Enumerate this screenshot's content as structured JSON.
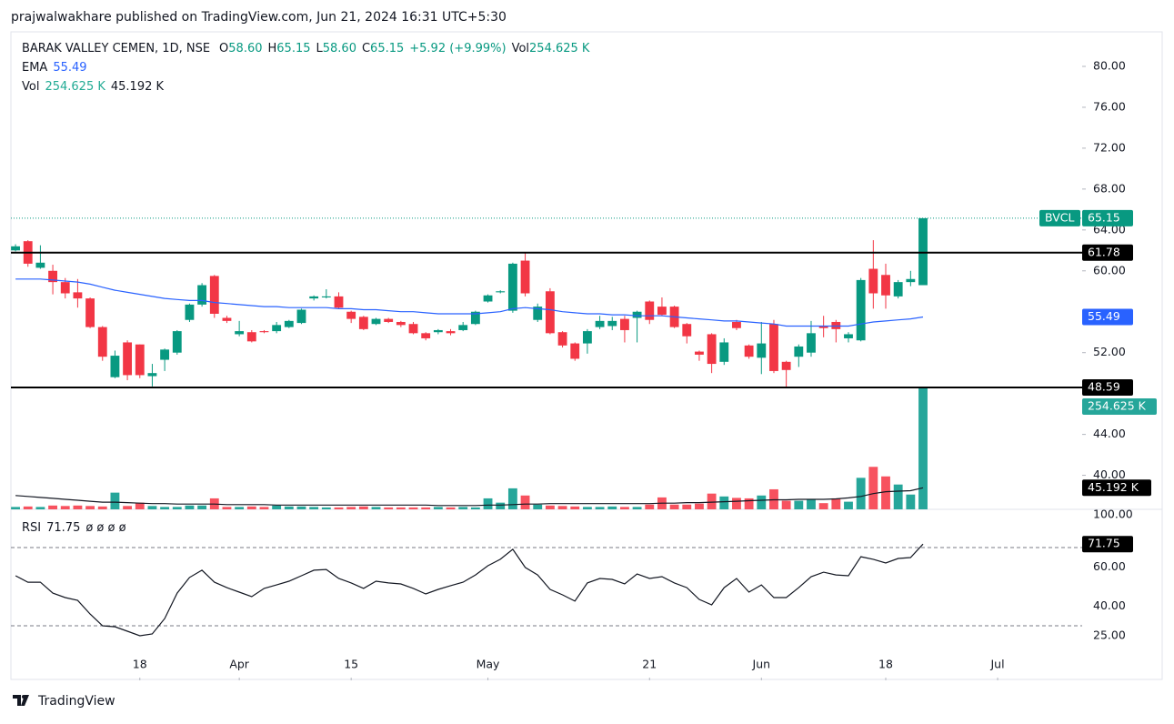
{
  "header": {
    "text": "prajwalwakhare published on TradingView.com, Jun 21, 2024 16:31 UTC+5:30"
  },
  "footer": {
    "logo_text": "TradingView"
  },
  "chart_data": {
    "type": "candlestick",
    "title": "BARAK VALLEY CEMEN, 1D, NSE",
    "ohlc_legend": [
      {
        "label": "O",
        "value": "58.60"
      },
      {
        "label": "H",
        "value": "65.15"
      },
      {
        "label": "L",
        "value": "58.60"
      },
      {
        "label": "C",
        "value": "65.15"
      }
    ],
    "change": "+5.92 (+9.99%)",
    "volume_legend": {
      "label": "Vol",
      "value": "254.625 K"
    },
    "ema_legend": {
      "name": "EMA",
      "value": "55.49"
    },
    "vol_legend": {
      "name": "Vol",
      "values": [
        "254.625 K",
        "45.192 K"
      ]
    },
    "rsi_legend": {
      "name": "RSI",
      "value": "71.75",
      "extra": "ø ø ø ø"
    },
    "up_color": "#089981",
    "down_color": "#f23645",
    "vol_up_color": "#26a69a",
    "vol_down_color": "#f7525f",
    "ema_color": "#2962ff",
    "vol_ma_color": "#131722",
    "rsi_color": "#131722",
    "open": [
      62.0,
      62.9,
      60.3,
      60.0,
      58.9,
      57.9,
      57.3,
      54.5,
      49.6,
      53.0,
      52.8,
      49.7,
      51.3,
      52.0,
      55.2,
      56.7,
      59.5,
      55.4,
      53.8,
      54.0,
      54.1,
      54.1,
      54.5,
      54.9,
      57.3,
      57.4,
      57.5,
      56.0,
      55.5,
      54.8,
      55.3,
      55.0,
      54.8,
      53.9,
      54.0,
      54.1,
      54.2,
      54.8,
      57.0,
      57.9,
      56.1,
      61.0,
      55.2,
      58.0,
      54.0,
      52.9,
      52.9,
      54.5,
      54.6,
      55.3,
      55.4,
      57.0,
      56.5,
      56.5,
      54.8,
      52.1,
      53.8,
      51.1,
      55.0,
      52.7,
      51.5,
      54.8,
      51.1,
      51.6,
      52.0,
      54.6,
      55.0,
      53.4,
      53.2,
      60.2,
      59.6,
      57.5,
      58.9,
      58.6
    ],
    "high": [
      62.6,
      63.0,
      62.5,
      60.6,
      59.3,
      59.2,
      57.4,
      54.6,
      52.2,
      53.2,
      52.8,
      50.9,
      52.4,
      54.2,
      56.8,
      58.8,
      59.6,
      55.6,
      55.1,
      54.2,
      54.2,
      55.0,
      55.2,
      56.3,
      57.6,
      58.2,
      57.9,
      56.1,
      55.6,
      55.4,
      55.4,
      55.1,
      55.0,
      54.0,
      54.3,
      54.3,
      55.0,
      56.1,
      57.7,
      58.1,
      60.8,
      61.8,
      56.8,
      58.3,
      54.1,
      53.0,
      54.3,
      55.6,
      55.5,
      55.6,
      56.1,
      57.1,
      57.4,
      56.6,
      54.9,
      52.2,
      53.9,
      53.4,
      55.2,
      52.8,
      55.0,
      55.2,
      51.2,
      52.8,
      55.1,
      55.6,
      55.2,
      54.0,
      59.3,
      63.0,
      60.7,
      59.1,
      60.0,
      65.15
    ],
    "low": [
      61.9,
      60.4,
      60.2,
      57.7,
      57.3,
      56.4,
      54.4,
      51.2,
      49.5,
      49.3,
      49.5,
      48.7,
      50.2,
      51.8,
      55.0,
      56.5,
      55.4,
      54.9,
      53.6,
      53.0,
      53.9,
      53.9,
      54.4,
      54.8,
      57.1,
      57.3,
      56.3,
      54.9,
      54.2,
      54.7,
      54.9,
      54.5,
      53.8,
      53.2,
      53.8,
      53.7,
      54.1,
      54.7,
      56.9,
      57.8,
      55.9,
      57.5,
      55.0,
      53.8,
      52.5,
      51.2,
      51.9,
      54.3,
      54.2,
      53.0,
      53.0,
      54.8,
      55.6,
      54.4,
      52.9,
      51.2,
      50.0,
      50.8,
      54.2,
      51.4,
      49.9,
      50.0,
      48.6,
      50.6,
      51.6,
      53.5,
      53.0,
      53.0,
      53.1,
      56.3,
      56.3,
      57.3,
      58.5,
      58.6
    ],
    "close": [
      62.4,
      60.7,
      60.8,
      58.9,
      57.8,
      57.3,
      54.5,
      51.6,
      51.7,
      49.8,
      49.8,
      50.0,
      52.3,
      54.1,
      56.7,
      58.6,
      55.8,
      55.1,
      54.1,
      53.1,
      54.0,
      54.7,
      55.1,
      56.2,
      57.5,
      57.5,
      56.4,
      55.3,
      54.3,
      55.3,
      55.0,
      54.7,
      53.9,
      53.4,
      54.2,
      53.9,
      54.7,
      56.0,
      57.6,
      58.0,
      60.7,
      57.8,
      56.5,
      53.9,
      52.7,
      51.4,
      54.1,
      55.1,
      55.1,
      54.2,
      56.0,
      55.2,
      55.7,
      54.5,
      53.6,
      51.8,
      50.9,
      53.0,
      54.4,
      51.6,
      52.9,
      50.2,
      50.3,
      52.6,
      53.9,
      54.4,
      54.3,
      53.8,
      59.1,
      57.8,
      57.6,
      58.9,
      59.2,
      65.15
    ],
    "volume": [
      5,
      6,
      5,
      8,
      7,
      8,
      7,
      6,
      35,
      7,
      14,
      7,
      5,
      5,
      8,
      8,
      23,
      5,
      5,
      6,
      5,
      8,
      6,
      6,
      5,
      4,
      4,
      5,
      6,
      5,
      4,
      4,
      4,
      4,
      5,
      4,
      5,
      4,
      23,
      14,
      44,
      29,
      10,
      8,
      7,
      6,
      5,
      5,
      6,
      5,
      5,
      10,
      25,
      10,
      10,
      12,
      33,
      27,
      24,
      23,
      29,
      42,
      18,
      18,
      20,
      13,
      23,
      16,
      66,
      89,
      69,
      52,
      31,
      254.625
    ],
    "ema": [
      59.2,
      59.2,
      59.2,
      59.1,
      59.0,
      58.9,
      58.7,
      58.4,
      58.1,
      57.9,
      57.7,
      57.5,
      57.3,
      57.2,
      57.1,
      57.1,
      56.9,
      56.8,
      56.7,
      56.6,
      56.5,
      56.5,
      56.4,
      56.4,
      56.4,
      56.4,
      56.3,
      56.3,
      56.2,
      56.2,
      56.1,
      56.0,
      56.0,
      55.9,
      55.8,
      55.8,
      55.8,
      55.8,
      55.9,
      56.0,
      56.3,
      56.4,
      56.3,
      56.2,
      56.0,
      55.9,
      55.8,
      55.8,
      55.7,
      55.7,
      55.6,
      55.6,
      55.6,
      55.5,
      55.4,
      55.3,
      55.2,
      55.1,
      55.1,
      55.0,
      54.9,
      54.8,
      54.6,
      54.6,
      54.6,
      54.6,
      54.6,
      54.6,
      54.8,
      55.0,
      55.1,
      55.2,
      55.3,
      55.49
    ],
    "volume_ma": [
      29,
      27,
      25,
      23,
      21,
      19,
      17,
      15,
      15,
      14,
      13,
      12,
      12,
      11,
      11,
      11,
      11,
      10,
      10,
      10,
      10,
      9,
      9,
      9,
      9,
      9,
      9,
      9,
      9,
      9,
      9,
      9,
      9,
      9,
      8,
      8,
      8,
      8,
      9,
      9,
      10,
      11,
      11,
      12,
      12,
      12,
      12,
      12,
      12,
      12,
      12,
      12,
      13,
      13,
      14,
      14,
      15,
      16,
      17,
      18,
      19,
      20,
      20,
      21,
      21,
      21,
      22,
      24,
      27,
      33,
      37,
      38,
      39,
      45.192
    ],
    "rsi": [
      55.6,
      52.3,
      52.3,
      46.7,
      44.4,
      43,
      36,
      30,
      29.5,
      27.2,
      24.9,
      25.8,
      33.7,
      46.7,
      54.7,
      58.4,
      52.3,
      49.5,
      47.2,
      44.9,
      49.1,
      50.9,
      52.8,
      55.6,
      58.4,
      58.8,
      54.2,
      51.9,
      49.1,
      52.8,
      51.9,
      51.4,
      49.1,
      46.3,
      48.6,
      50.5,
      52.3,
      56,
      60.7,
      64,
      69.1,
      59.8,
      56,
      48.6,
      45.8,
      42.6,
      51.9,
      54.2,
      53.7,
      51.4,
      56.5,
      54.2,
      55.1,
      51.9,
      49.5,
      43.5,
      40.7,
      49.5,
      54.2,
      47.2,
      50.9,
      44.4,
      44.4,
      49.5,
      55.1,
      57.4,
      56,
      55.6,
      65.3,
      64,
      62.1,
      64.4,
      64.9,
      71.75
    ],
    "rsi_bands": [
      30,
      70
    ],
    "xlim": [
      -0.37,
      85.8
    ],
    "xticks": [
      {
        "value": 10,
        "label": "18"
      },
      {
        "value": 18,
        "label": "Apr"
      },
      {
        "value": 27,
        "label": "15"
      },
      {
        "value": 38,
        "label": "May"
      },
      {
        "value": 51,
        "label": "21"
      },
      {
        "value": 60,
        "label": "Jun"
      },
      {
        "value": 70,
        "label": "18"
      },
      {
        "value": 79,
        "label": "Jul"
      }
    ],
    "ylim": [
      36.67,
      83.38
    ],
    "yticks": [
      {
        "value": 40,
        "label": "40.00"
      },
      {
        "value": 44,
        "label": "44.00"
      },
      {
        "value": 52,
        "label": "52.00"
      },
      {
        "value": 60,
        "label": "60.00"
      },
      {
        "value": 64,
        "label": "64.00"
      },
      {
        "value": 68,
        "label": "68.00"
      },
      {
        "value": 72,
        "label": "72.00"
      },
      {
        "value": 76,
        "label": "76.00"
      },
      {
        "value": 80,
        "label": "80.00"
      }
    ],
    "volume_ylim": [
      0,
      1000
    ],
    "rsi_ylim": [
      3.5,
      88.6
    ],
    "rsi_yticks": [
      {
        "value": 25,
        "label": "25.00"
      },
      {
        "value": 40,
        "label": "40.00"
      },
      {
        "value": 60,
        "label": "60.00"
      },
      {
        "value": 100,
        "label": "100.00"
      }
    ],
    "levels": [
      {
        "value": 61.78,
        "label": "61.78"
      },
      {
        "value": 48.59,
        "label": "48.59"
      }
    ],
    "last_price": {
      "symbol": "BVCL",
      "value": 65.15,
      "label": "65.15"
    }
  }
}
